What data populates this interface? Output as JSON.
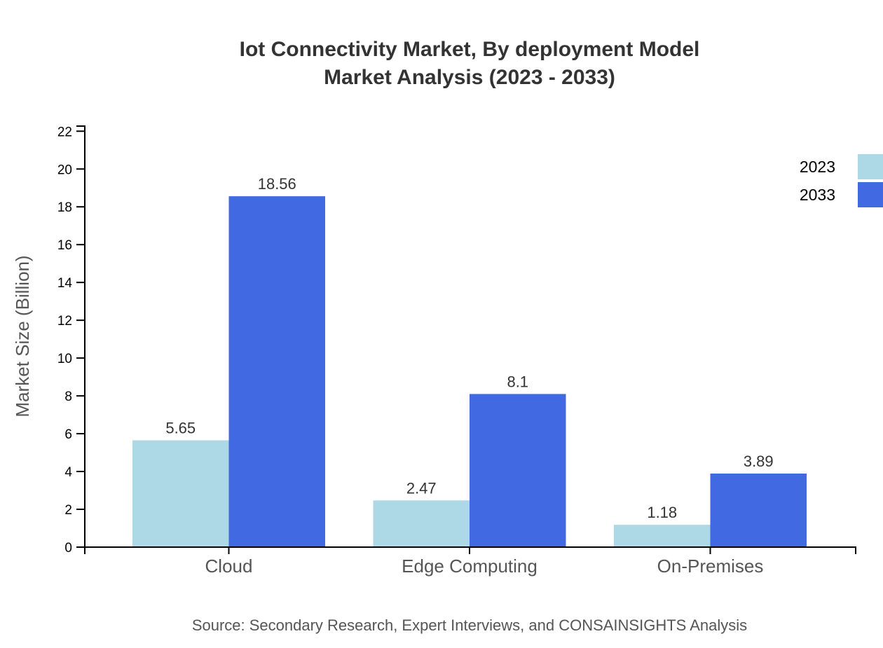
{
  "chart_data": {
    "type": "bar",
    "title": "Iot Connectivity Market, By deployment Model",
    "subtitle": "Market Analysis (2023 - 2033)",
    "xlabel": "",
    "ylabel": "Market Size (Billion)",
    "categories": [
      "Cloud",
      "Edge Computing",
      "On-Premises"
    ],
    "series": [
      {
        "name": "2023",
        "values": [
          5.65,
          2.47,
          1.18
        ],
        "color": "#add8e6"
      },
      {
        "name": "2033",
        "values": [
          18.56,
          8.1,
          3.89
        ],
        "color": "#4169e1"
      }
    ],
    "ylim": [
      0,
      22.27
    ],
    "yticks": [
      0,
      2,
      4,
      6,
      8,
      10,
      12,
      14,
      16,
      18,
      20,
      22
    ],
    "grid": false,
    "legend_position": "top-right",
    "source": "Source: Secondary Research, Expert Interviews, and CONSAINSIGHTS Analysis"
  }
}
